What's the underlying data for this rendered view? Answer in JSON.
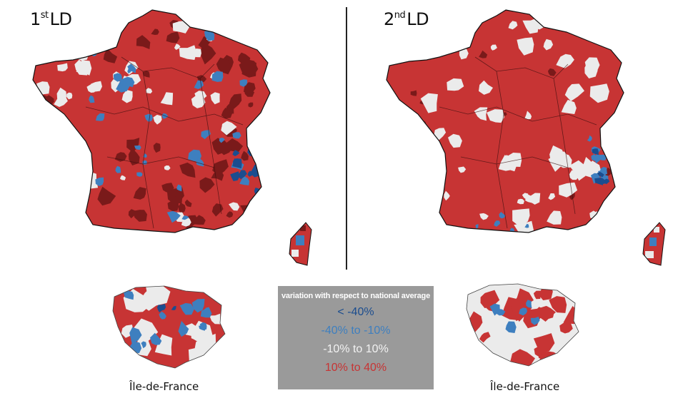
{
  "panels": {
    "left": {
      "title_main": "1",
      "title_sup": "st",
      "title_rest": "LD",
      "inset_label": "Île-de-France"
    },
    "right": {
      "title_main": "2",
      "title_sup": "nd",
      "title_rest": "LD",
      "inset_label": "Île-de-France"
    }
  },
  "legend": {
    "title": "variation with respect to national average",
    "items": [
      {
        "label": "< -40%",
        "color": "#1b4d8f"
      },
      {
        "label": "-40% to -10%",
        "color": "#3e7fbf"
      },
      {
        "label": "-10% to 10%",
        "color": "#ececec"
      },
      {
        "label": "10% to 40%",
        "color": "#c73434"
      }
    ]
  },
  "colors": {
    "strong_negative": "#1b4d8f",
    "negative": "#3e7fbf",
    "neutral": "#ebebeb",
    "positive": "#c73434",
    "strong_positive": "#7a1a1a",
    "border": "#111111"
  },
  "maps": {
    "first_round": {
      "dominant_category": "10% to 40%",
      "secondary": [
        "above 40%",
        "-10% to 10%",
        "-40% to -10%"
      ]
    },
    "second_round": {
      "dominant_category": "10% to 40%",
      "secondary": [
        "-10% to 10%",
        "-40% to -10%"
      ]
    }
  }
}
